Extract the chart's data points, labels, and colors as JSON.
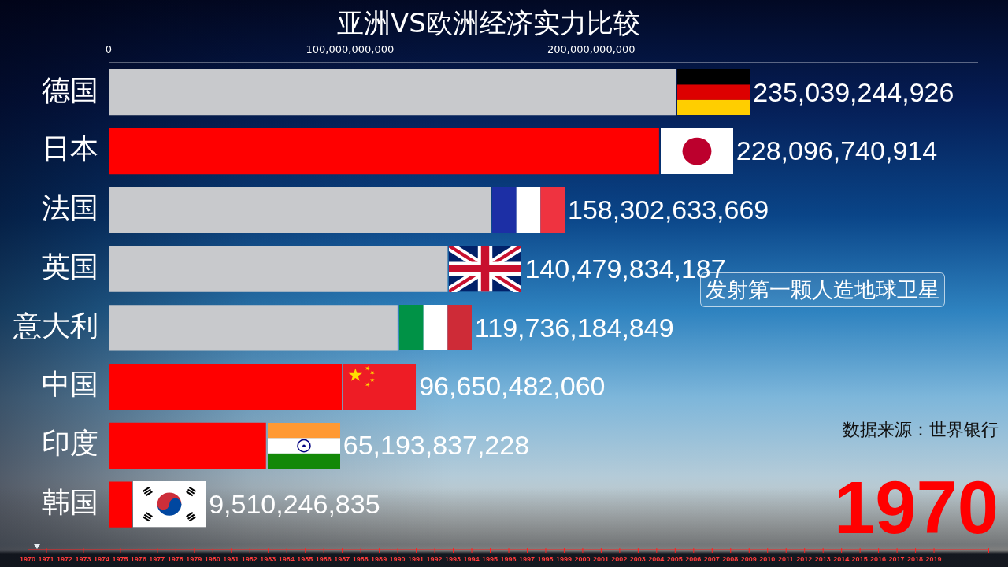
{
  "chart_data": {
    "type": "bar",
    "orientation": "horizontal",
    "title": "亚洲VS欧洲经济实力比较",
    "categories": [
      "德国",
      "日本",
      "法国",
      "英国",
      "意大利",
      "中国",
      "印度",
      "韩国"
    ],
    "values": [
      235039244926,
      228096740914,
      158302633669,
      140479834187,
      119736184849,
      96650482060,
      65193837228,
      9510246835
    ],
    "colors": [
      "#c8c9cc",
      "#ff0000",
      "#c8c9cc",
      "#c8c9cc",
      "#c8c9cc",
      "#ff0000",
      "#ff0000",
      "#ff0000"
    ],
    "value_labels": [
      "235,039,244,926",
      "228,096,740,914",
      "158,302,633,669",
      "140,479,834,187",
      "119,736,184,849",
      "96,650,482,060",
      "65,193,837,228",
      "9,510,246,835"
    ],
    "xlim": [
      0,
      360000000000
    ],
    "xticks": [
      0,
      {
        "value": 100000000000,
        "label": "100,000,000,000"
      },
      {
        "value": 200000000000,
        "label": "200,000,000,000"
      }
    ],
    "grid": "x",
    "legend": false,
    "annotations": [
      "发射第一颗人造地球卫星",
      "数据来源：世界银行",
      "1970",
      "1970",
      "1971",
      "1972",
      "1973",
      "1974",
      "1975",
      "1976",
      "1977",
      "1978",
      "1979",
      "1980",
      "1981",
      "1982",
      "1983",
      "1984",
      "1985",
      "1986",
      "1987",
      "1988",
      "1989",
      "1990",
      "1991",
      "1992",
      "1993",
      "1994",
      "1995",
      "1996",
      "1997",
      "1998",
      "1999",
      "2000",
      "2001",
      "2002",
      "2003",
      "2004",
      "2005",
      "2006",
      "2007",
      "2008",
      "2009",
      "2010",
      "2011",
      "2012",
      "2013",
      "2014",
      "2015",
      "2016",
      "2017",
      "2018",
      "2019"
    ]
  }
}
